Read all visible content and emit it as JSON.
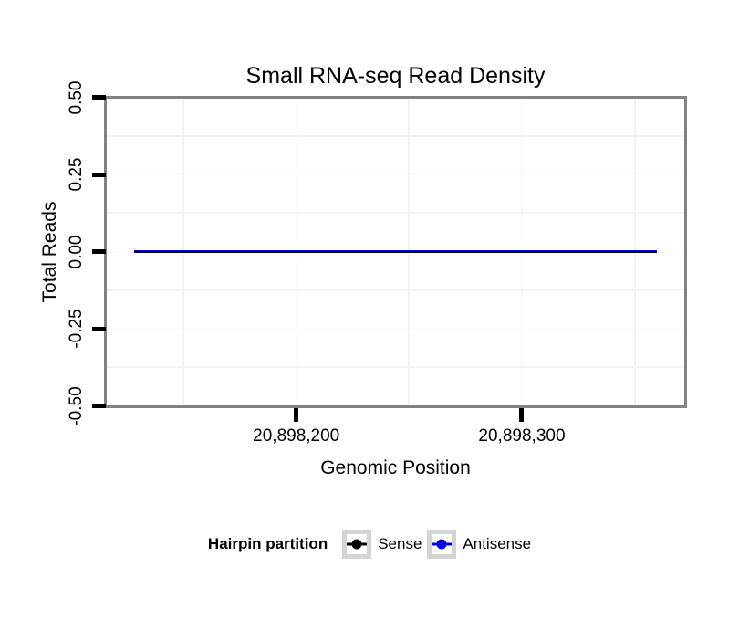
{
  "page": {
    "background": "#ffffff"
  },
  "chart_data": {
    "type": "line",
    "title": "Small RNA-seq Read Density",
    "xlabel": "Genomic Position",
    "ylabel": "Total Reads",
    "x_domain": [
      20898116,
      20898372
    ],
    "y_domain": [
      -0.5,
      0.5
    ],
    "x_ticks": [
      {
        "value": 20898200,
        "label": "20,898,200"
      },
      {
        "value": 20898300,
        "label": "20,898,300"
      }
    ],
    "y_ticks": [
      {
        "value": 0.5,
        "label": "0.50"
      },
      {
        "value": 0.25,
        "label": "0.25"
      },
      {
        "value": 0.0,
        "label": "0.00"
      },
      {
        "value": -0.25,
        "label": "-0.25"
      },
      {
        "value": -0.5,
        "label": "-0.50"
      }
    ],
    "x_minor_gridlines": [
      20898150,
      20898250,
      20898350
    ],
    "y_minor_gridlines": [
      0.375,
      0.125,
      -0.125,
      -0.375
    ],
    "grid_major_color": "#fbfbfb",
    "grid_minor_color": "#f3f3f3",
    "panel_border_color": "#828282",
    "legend_position": "bottom",
    "series": [
      {
        "name": "Sense",
        "color": "#000000",
        "points": [
          [
            20898128,
            0
          ],
          [
            20898360,
            0
          ]
        ]
      },
      {
        "name": "Antisense",
        "color": "#0000ee",
        "points": [
          [
            20898128,
            0
          ],
          [
            20898360,
            0
          ]
        ]
      }
    ]
  },
  "legend": {
    "title": "Hairpin partition",
    "items": [
      {
        "label": "Sense",
        "color": "#000000"
      },
      {
        "label": "Antisense",
        "color": "#0000ee"
      }
    ]
  }
}
